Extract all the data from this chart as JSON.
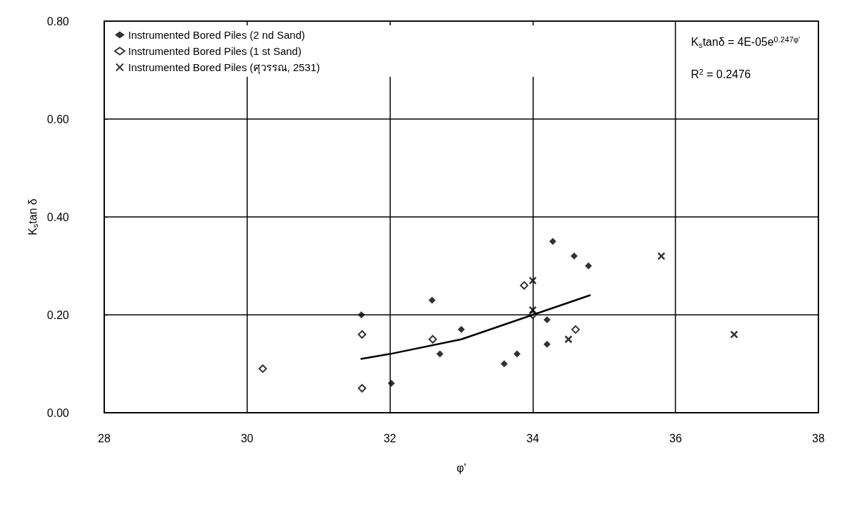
{
  "chart_data": {
    "type": "scatter",
    "xlabel": "φ'",
    "ylabel": "K$_{s}$tan δ",
    "xlim": [
      28,
      38
    ],
    "xticks": [
      28,
      30,
      32,
      34,
      36,
      38
    ],
    "ylim": [
      0,
      0.8
    ],
    "yticks": [
      {
        "value": 0,
        "label": "0.00"
      },
      {
        "value": 0.2,
        "label": "0.20"
      },
      {
        "value": 0.4,
        "label": "0.40"
      },
      {
        "value": 0.6,
        "label": "0.60"
      },
      {
        "value": 0.8,
        "label": "0.80"
      }
    ],
    "grid": true,
    "legend": "top left",
    "annotations": [
      "K$_{s}$tanδ = 4E-05e$^{0.247φ'}$",
      "R$^{2}$ = 0.2476"
    ],
    "series": [
      {
        "name": "Instrumented Bored Piles (2 nd Sand)",
        "color": "#000000",
        "marker": "diamond",
        "x": [
          31.6,
          32.02,
          32.59,
          32.7,
          33.0,
          33.6,
          33.78,
          34.2,
          34.2,
          34.28,
          34.58,
          34.78
        ],
        "values": [
          0.2,
          0.06,
          0.23,
          0.12,
          0.17,
          0.1,
          0.12,
          0.19,
          0.14,
          0.35,
          0.32,
          0.3
        ]
      },
      {
        "name": "Instrumented Bored Piles (1 st Sand)",
        "color": "#000000",
        "marker": "diamond",
        "x": [
          30.22,
          31.61,
          31.61,
          32.6,
          33.88,
          34.0,
          34.6
        ],
        "values": [
          0.09,
          0.16,
          0.05,
          0.15,
          0.26,
          0.2,
          0.17
        ]
      },
      {
        "name": "Instrumented Bored Piles (ศุวรรณ, 2531)",
        "color": "#000000",
        "marker": "cross",
        "x": [
          34.0,
          34.0,
          34.5,
          35.8,
          36.82
        ],
        "values": [
          0.27,
          0.21,
          0.15,
          0.32,
          0.16
        ]
      },
      {
        "type": "line",
        "color": "#000000",
        "marker": "none",
        "line_style": "solid",
        "x": [
          31.6,
          32.0,
          33.0,
          34.0,
          34.8
        ],
        "values": [
          0.11,
          0.12,
          0.15,
          0.2,
          0.24
        ]
      }
    ]
  }
}
